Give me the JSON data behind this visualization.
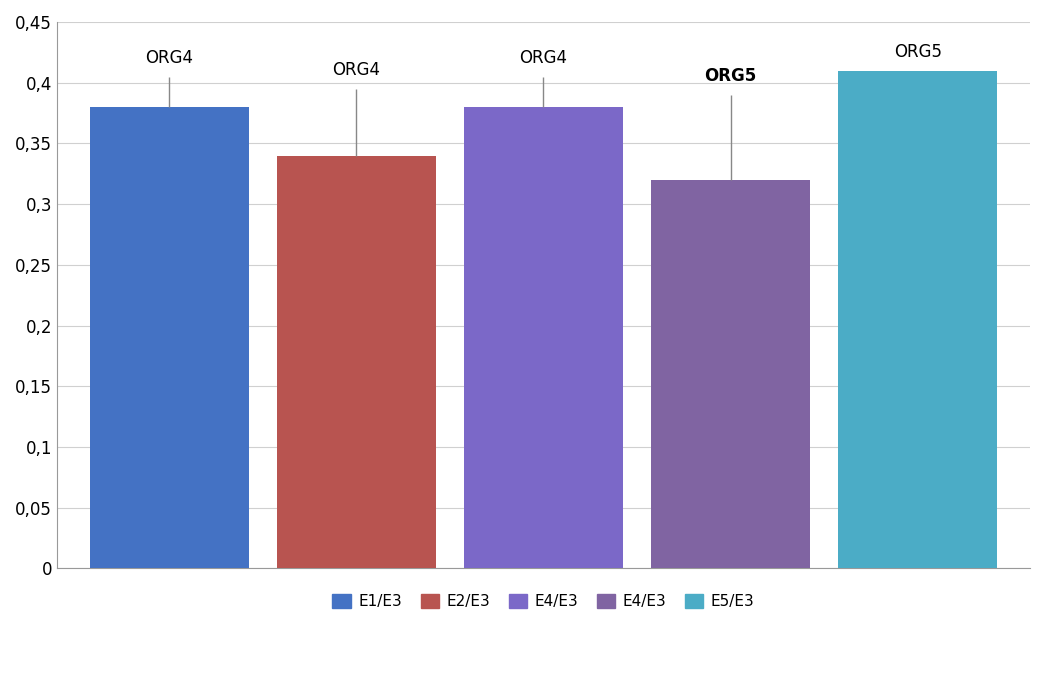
{
  "categories": [
    "E1/E3",
    "E2/E3",
    "E4/E3",
    "E4/E3",
    "E5/E3"
  ],
  "values": [
    0.38,
    0.34,
    0.38,
    0.32,
    0.41
  ],
  "errors": [
    0.025,
    0.055,
    0.025,
    0.07,
    0.0
  ],
  "bar_colors": [
    "#4472C4",
    "#B85450",
    "#7B68C8",
    "#8064A2",
    "#4BACC6"
  ],
  "labels": [
    "ORG4",
    "ORG4",
    "ORG4",
    "ORG5",
    "ORG5"
  ],
  "label_bold": [
    false,
    false,
    false,
    true,
    false
  ],
  "legend_labels": [
    "E1/E3",
    "E2/E3",
    "E4/E3",
    "E4/E3",
    "E5/E3"
  ],
  "legend_colors": [
    "#4472C4",
    "#B85450",
    "#7B68C8",
    "#8064A2",
    "#4BACC6"
  ],
  "ylim": [
    0,
    0.45
  ],
  "yticks": [
    0,
    0.05,
    0.1,
    0.15,
    0.2,
    0.25,
    0.3,
    0.35,
    0.4,
    0.45
  ],
  "ytick_labels": [
    "0",
    "0,05",
    "0,1",
    "0,15",
    "0,2",
    "0,25",
    "0,3",
    "0,35",
    "0,4",
    "0,45"
  ],
  "background_color": "#FFFFFF",
  "grid_color": "#D0D0D0",
  "bar_width": 0.85
}
